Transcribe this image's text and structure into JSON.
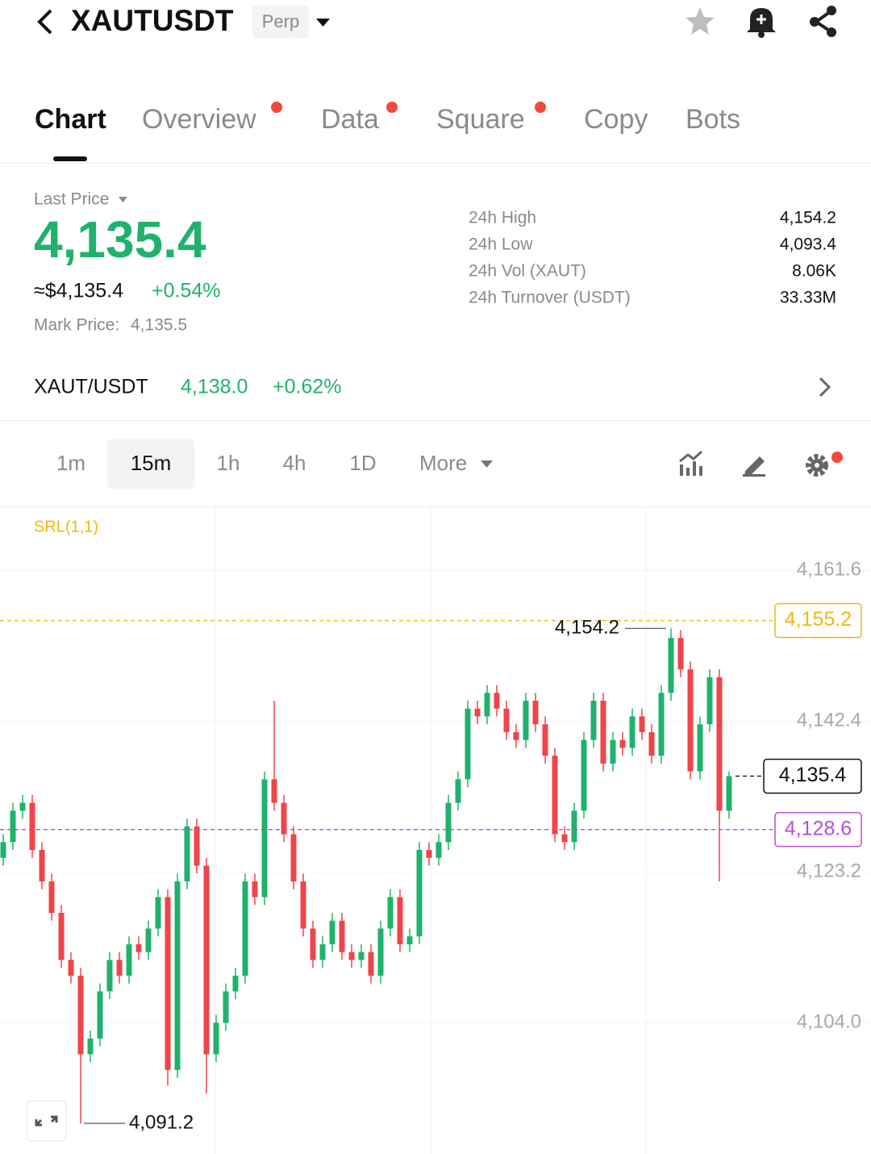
{
  "header": {
    "symbol": "XAUTUSDT",
    "badge": "Perp"
  },
  "tabs": [
    "Chart",
    "Overview",
    "Data",
    "Square",
    "Copy",
    "Bots"
  ],
  "price": {
    "caption": "Last Price",
    "last": "4,135.4",
    "approx": "≈$4,135.4",
    "change": "+0.54%",
    "mark_caption": "Mark Price:",
    "mark": "4,135.5"
  },
  "stats": [
    {
      "label": "24h High",
      "value": "4,154.2"
    },
    {
      "label": "24h Low",
      "value": "4,093.4"
    },
    {
      "label": "24h Vol (XAUT)",
      "value": "8.06K"
    },
    {
      "label": "24h Turnover (USDT)",
      "value": "33.33M"
    }
  ],
  "spot": {
    "pair": "XAUT/USDT",
    "price": "4,138.0",
    "change": "+0.62%"
  },
  "intervals": [
    "1m",
    "15m",
    "1h",
    "4h",
    "1D",
    "More"
  ],
  "indicator": "SRL(1,1)",
  "chart_data": {
    "type": "candlestick",
    "ylim": [
      4087.3,
      4168.5
    ],
    "yticks": [
      {
        "value": 4104.0,
        "label": "4,104.0"
      },
      {
        "value": 4123.2,
        "label": "4,123.2"
      },
      {
        "value": 4142.4,
        "label": "4,142.4"
      },
      {
        "value": 4161.6,
        "label": "4,161.6"
      }
    ],
    "grid": true,
    "up_color": "#20b26c",
    "down_color": "#ef454a",
    "open": [
      4125,
      4127,
      4131,
      4132,
      4126,
      4122,
      4118,
      4112,
      4110,
      4100,
      4102,
      4108,
      4112,
      4110,
      4114,
      4113,
      4116,
      4120,
      4098,
      4122,
      4129,
      4124,
      4100,
      4104,
      4108,
      4110,
      4122,
      4120,
      4135,
      4132,
      4128,
      4122,
      4116,
      4112,
      4114,
      4117,
      4113,
      4112,
      4113,
      4110,
      4116,
      4120,
      4114,
      4115,
      4126,
      4125,
      4127,
      4132,
      4135,
      4144,
      4143,
      4146,
      4144,
      4141,
      4140,
      4145,
      4142,
      4138,
      4128,
      4127,
      4131,
      4140,
      4145,
      4137,
      4140,
      4139,
      4143,
      4141,
      4138,
      4146,
      4153,
      4149,
      4136,
      4142,
      4148,
      4131
    ],
    "high": [
      4128,
      4132,
      4133,
      4133,
      4127,
      4123,
      4119,
      4113,
      4111,
      4103,
      4109,
      4113,
      4113,
      4115,
      4115,
      4117,
      4121,
      4121,
      4123,
      4130,
      4130,
      4125,
      4105,
      4109,
      4111,
      4123,
      4123,
      4136,
      4145,
      4133,
      4129,
      4123,
      4117,
      4115,
      4118,
      4118,
      4114,
      4114,
      4114,
      4117,
      4121,
      4121,
      4116,
      4127,
      4127,
      4128,
      4133,
      4136,
      4145,
      4145,
      4147,
      4147,
      4145,
      4142,
      4146,
      4146,
      4143,
      4139,
      4129,
      4132,
      4141,
      4146,
      4146,
      4141,
      4141,
      4144,
      4144,
      4142,
      4147,
      4154.2,
      4154,
      4150,
      4143,
      4149,
      4149,
      4136
    ],
    "low": [
      4124,
      4126,
      4130,
      4125,
      4121,
      4117,
      4111,
      4109,
      4091.2,
      4099,
      4101,
      4107,
      4109,
      4109,
      4112,
      4112,
      4115,
      4096,
      4097,
      4121,
      4123,
      4095,
      4099,
      4103,
      4107,
      4109,
      4119,
      4119,
      4131,
      4127,
      4121,
      4115,
      4111,
      4111,
      4113,
      4112,
      4111,
      4111,
      4109,
      4109,
      4115,
      4113,
      4113,
      4114,
      4124,
      4124,
      4126,
      4131,
      4134,
      4142,
      4142,
      4143,
      4140,
      4139,
      4139,
      4141,
      4137,
      4127,
      4126,
      4126,
      4130,
      4139,
      4136,
      4136,
      4138,
      4138,
      4140,
      4137,
      4137,
      4145,
      4148,
      4135,
      4135,
      4141,
      4122,
      4130
    ],
    "close": [
      4127,
      4131,
      4132,
      4126,
      4122,
      4118,
      4112,
      4110,
      4100,
      4102,
      4108,
      4112,
      4110,
      4114,
      4113,
      4116,
      4120,
      4098,
      4122,
      4129,
      4124,
      4100,
      4104,
      4108,
      4110,
      4122,
      4120,
      4135,
      4132,
      4128,
      4122,
      4116,
      4112,
      4114,
      4117,
      4113,
      4112,
      4113,
      4110,
      4116,
      4120,
      4114,
      4115,
      4126,
      4125,
      4127,
      4132,
      4135,
      4144,
      4143,
      4146,
      4144,
      4141,
      4140,
      4145,
      4142,
      4138,
      4128,
      4127,
      4131,
      4140,
      4145,
      4137,
      4140,
      4139,
      4143,
      4141,
      4138,
      4146,
      4153,
      4149,
      4136,
      4142,
      4148,
      4131,
      4135.4
    ],
    "price_lines": [
      {
        "value": 4155.2,
        "label": "4,155.2",
        "color": "#f0b90b"
      },
      {
        "value": 4128.6,
        "label": "4,128.6",
        "color": "#b44fd6"
      }
    ],
    "last_price_line": {
      "value": 4135.4,
      "label": "4,135.4",
      "color": "#111111"
    },
    "high_annotation": {
      "value": 4154.2,
      "label": "4,154.2"
    },
    "low_annotation": {
      "value": 4091.2,
      "label": "4,091.2"
    }
  }
}
